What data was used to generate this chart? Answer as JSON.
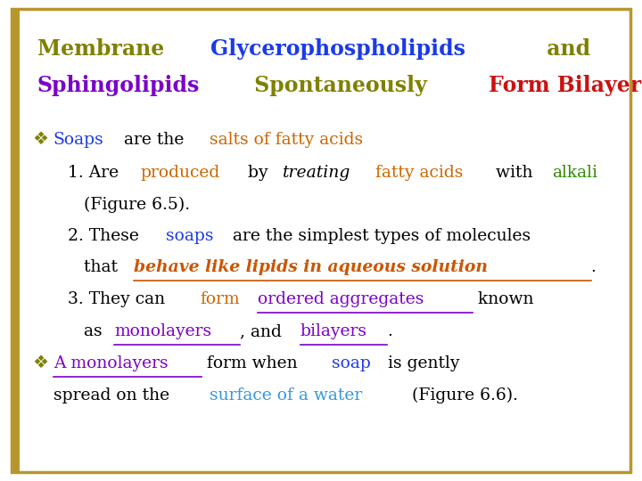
{
  "bg_color": "#FFFFFF",
  "border_color": "#B8962E",
  "left_bar_color": "#B8962E",
  "font_family": "DejaVu Serif",
  "fs_title": 17,
  "fs_body": 13.5,
  "title_line1": [
    {
      "text": "Membrane ",
      "color": "#808000",
      "bold": true
    },
    {
      "text": "Glycerophospholipids",
      "color": "#1B3BE8",
      "bold": true
    },
    {
      "text": " and",
      "color": "#808000",
      "bold": true
    }
  ],
  "title_line2": [
    {
      "text": "Sphingolipids",
      "color": "#7B00C8",
      "bold": true
    },
    {
      "text": " Spontaneously ",
      "color": "#808000",
      "bold": true
    },
    {
      "text": "Form Bilayers",
      "color": "#CC1111",
      "bold": true
    }
  ]
}
